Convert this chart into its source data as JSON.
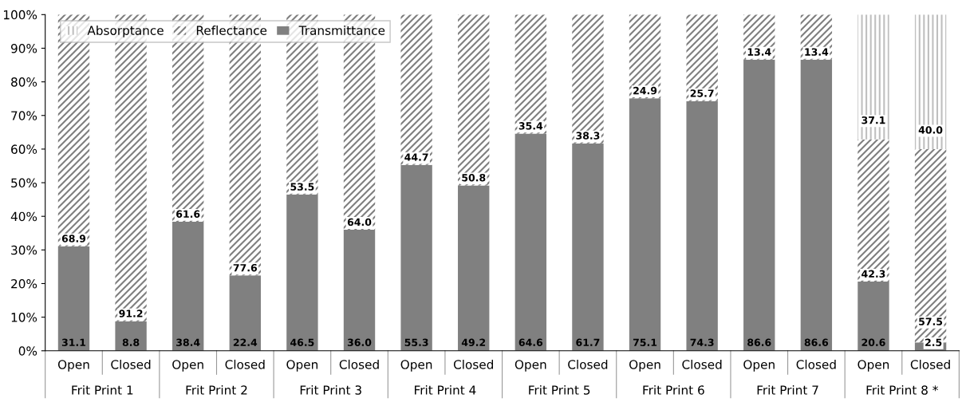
{
  "chart_data": {
    "type": "bar",
    "stacked": true,
    "categories": [
      "Open",
      "Closed",
      "Open",
      "Closed",
      "Open",
      "Closed",
      "Open",
      "Closed",
      "Open",
      "Closed",
      "Open",
      "Closed",
      "Open",
      "Closed",
      "Open",
      "Closed"
    ],
    "annotations": [
      "Frit Print 1",
      "Frit Print 2",
      "Frit Print 3",
      "Frit Print 4",
      "Frit Print 5",
      "Frit Print 6",
      "Frit Print 7",
      "Frit Print 8 *"
    ],
    "series": [
      {
        "name": "Transmittance",
        "color": "#808080",
        "values": [
          31.1,
          8.8,
          38.4,
          22.4,
          46.5,
          36.0,
          55.3,
          49.2,
          64.6,
          61.7,
          75.1,
          74.3,
          86.6,
          86.6,
          20.6,
          2.5
        ],
        "value_labels": [
          "31.1",
          "8.8",
          "38.4",
          "22.4",
          "46.5",
          "36.0",
          "55.3",
          "49.2",
          "64.6",
          "61.7",
          "75.1",
          "74.3",
          "86.6",
          "86.6",
          "20.6",
          "2.5"
        ]
      },
      {
        "name": "Reflectance",
        "color": "#7f7f7f",
        "values": [
          68.9,
          91.2,
          61.6,
          77.6,
          53.5,
          64.0,
          44.7,
          50.8,
          35.4,
          38.3,
          24.9,
          25.7,
          13.4,
          13.4,
          42.3,
          57.5
        ],
        "value_labels": [
          "68.9",
          "91.2",
          "61.6",
          "77.6",
          "53.5",
          "64.0",
          "44.7",
          "50.8",
          "35.4",
          "38.3",
          "24.9",
          "25.7",
          "13.4",
          "13.4",
          "42.3",
          "57.5"
        ]
      },
      {
        "name": "Absorptance",
        "color": "#bfbfbf",
        "values": [
          null,
          null,
          null,
          null,
          null,
          null,
          null,
          null,
          null,
          null,
          null,
          null,
          null,
          null,
          37.1,
          40.0
        ],
        "value_labels": [
          null,
          null,
          null,
          null,
          null,
          null,
          null,
          null,
          null,
          null,
          null,
          null,
          null,
          null,
          "37.1",
          "40.0"
        ]
      }
    ],
    "ylim": [
      0,
      100
    ],
    "yticks": [
      {
        "value": 0,
        "label": "0%"
      },
      {
        "value": 10,
        "label": "10%"
      },
      {
        "value": 20,
        "label": "20%"
      },
      {
        "value": 30,
        "label": "30%"
      },
      {
        "value": 40,
        "label": "40%"
      },
      {
        "value": 50,
        "label": "50%"
      },
      {
        "value": 60,
        "label": "60%"
      },
      {
        "value": 70,
        "label": "70%"
      },
      {
        "value": 80,
        "label": "80%"
      },
      {
        "value": 90,
        "label": "90%"
      },
      {
        "value": 100,
        "label": "100%"
      }
    ],
    "legend": "top left",
    "grid": false
  }
}
